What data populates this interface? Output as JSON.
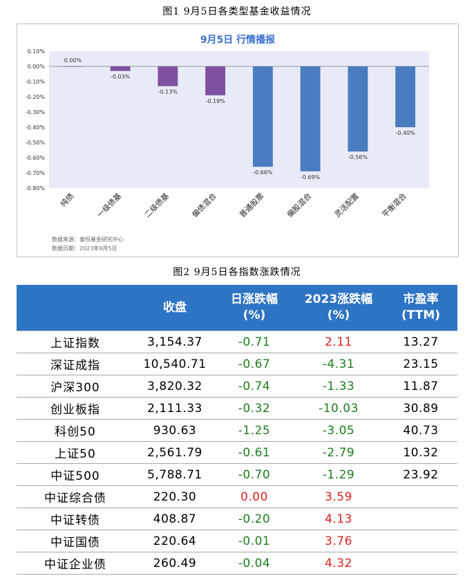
{
  "captions": {
    "figure1": "图1  9月5日各类型基金收益情况",
    "figure2": "图2  9月5日各指数涨跌情况"
  },
  "chart_data": {
    "type": "bar",
    "title": "9月5日  行情播报",
    "categories": [
      "纯债",
      "一级债基",
      "二级债基",
      "偏债混合",
      "普通股票",
      "偏股混合",
      "灵活配置",
      "平衡混合"
    ],
    "values": [
      0.0,
      -0.03,
      -0.13,
      -0.19,
      -0.66,
      -0.69,
      -0.56,
      -0.4
    ],
    "data_labels": [
      "0.00%",
      "-0.03%",
      "-0.13%",
      "-0.19%",
      "-0.66%",
      "-0.69%",
      "-0.56%",
      "-0.40%"
    ],
    "ylim": [
      -0.8,
      0.1
    ],
    "y_ticks": [
      0.1,
      0.0,
      -0.1,
      -0.2,
      -0.3,
      -0.4,
      -0.5,
      -0.6,
      -0.7,
      -0.8
    ],
    "y_tick_labels": [
      "0.10%",
      "0.00%",
      "-0.10%",
      "-0.20%",
      "-0.30%",
      "-0.40%",
      "-0.50%",
      "-0.60%",
      "-0.70%",
      "-0.80%"
    ],
    "bar_colors": [
      "#7f7fbf",
      "#8050a0",
      "#8050a0",
      "#8050a0",
      "#4a7cc0",
      "#4a7cc0",
      "#4a7cc0",
      "#4a7cc0"
    ],
    "plot_background": "#e8ebf7",
    "title_color": "#3a6fd0",
    "grid": false
  },
  "source_notes": {
    "source": "数据来源：泰恒基金研究中心",
    "date": "数据日期：2023年9月5日"
  },
  "table": {
    "headers": [
      "",
      "收盘",
      "日涨跌幅\n(%)",
      "2023涨跌幅\n(%)",
      "市盈率\n(TTM)"
    ],
    "rows": [
      {
        "name": "上证指数",
        "close": "3,154.37",
        "day": "-0.71",
        "ytd": "2.11",
        "pe": "13.27"
      },
      {
        "name": "深证成指",
        "close": "10,540.71",
        "day": "-0.67",
        "ytd": "-4.31",
        "pe": "23.15"
      },
      {
        "name": "沪深300",
        "close": "3,820.32",
        "day": "-0.74",
        "ytd": "-1.33",
        "pe": "11.87"
      },
      {
        "name": "创业板指",
        "close": "2,111.33",
        "day": "-0.32",
        "ytd": "-10.03",
        "pe": "30.89"
      },
      {
        "name": "科创50",
        "close": "930.63",
        "day": "-1.25",
        "ytd": "-3.05",
        "pe": "40.73"
      },
      {
        "name": "上证50",
        "close": "2,561.79",
        "day": "-0.61",
        "ytd": "-2.79",
        "pe": "10.32"
      },
      {
        "name": "中证500",
        "close": "5,788.71",
        "day": "-0.70",
        "ytd": "-1.29",
        "pe": "23.92"
      },
      {
        "name": "中证综合债",
        "close": "220.30",
        "day": "0.00",
        "ytd": "3.59",
        "pe": ""
      },
      {
        "name": "中证转债",
        "close": "408.87",
        "day": "-0.20",
        "ytd": "4.13",
        "pe": ""
      },
      {
        "name": "中证国债",
        "close": "220.64",
        "day": "-0.01",
        "ytd": "3.76",
        "pe": ""
      },
      {
        "name": "中证企业债",
        "close": "260.49",
        "day": "-0.04",
        "ytd": "4.32",
        "pe": ""
      }
    ],
    "colors": {
      "header_bg": "#2e74c4",
      "negative": "#1e7d1e",
      "positive": "#e02020"
    }
  }
}
